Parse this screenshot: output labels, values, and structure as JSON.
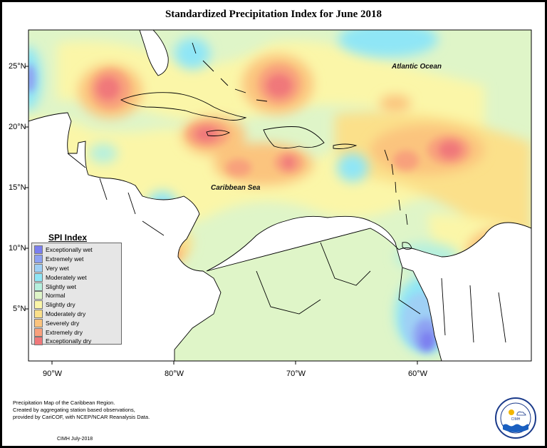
{
  "title": "Standardized Precipitation Index for June 2018",
  "map": {
    "lat_labels": [
      "25°N",
      "20°N",
      "15°N",
      "10°N",
      "5°N"
    ],
    "lon_labels": [
      "90°W",
      "80°W",
      "70°W",
      "60°W"
    ],
    "places": {
      "atlantic": "Atlantic Ocean",
      "caribbean": "Caribbean Sea"
    },
    "colors": {
      "ocean_normal": "#dff5c8",
      "land": "#ffffff",
      "coast": "#000000"
    }
  },
  "legend": {
    "title": "SPI Index",
    "items": [
      {
        "label": "Exceptionally wet",
        "color": "#7b7ff0"
      },
      {
        "label": "Extremely wet",
        "color": "#8ea2f2"
      },
      {
        "label": "Very wet",
        "color": "#9fd0f5"
      },
      {
        "label": "Moderately wet",
        "color": "#8fe6f6"
      },
      {
        "label": "Slightly wet",
        "color": "#b6f0de"
      },
      {
        "label": "Normal",
        "color": "#dff5c8"
      },
      {
        "label": "Slightly dry",
        "color": "#fbf6a8"
      },
      {
        "label": "Moderately dry",
        "color": "#fbe08a"
      },
      {
        "label": "Severely dry",
        "color": "#fbc47e"
      },
      {
        "label": "Extremely dry",
        "color": "#f8a07c"
      },
      {
        "label": "Exceptionally dry",
        "color": "#f0787a"
      }
    ]
  },
  "footer": {
    "lines": [
      "Precipitation Map of the Caribbean Region.",
      "Created by aggregating station based observations,",
      "provided by CariCOF, with NCEP/NCAR Reanalysis Data."
    ],
    "credit": "CIMH July-2018"
  },
  "logo": {
    "text": "CIMH"
  }
}
